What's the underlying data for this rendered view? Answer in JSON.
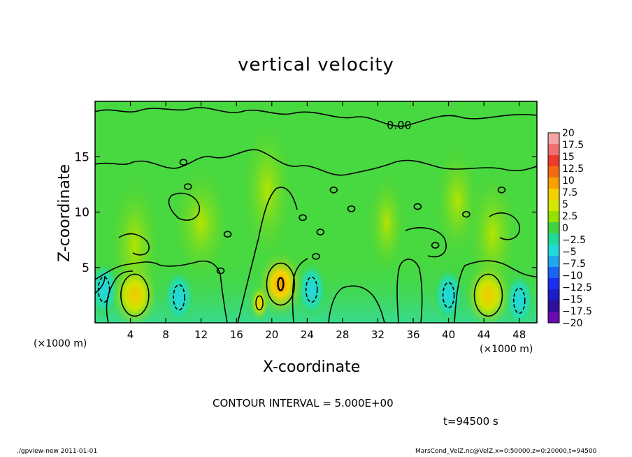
{
  "chart_data": {
    "type": "heatmap",
    "title": "vertical velocity",
    "xlabel": "X-coordinate",
    "ylabel": "Z-coordinate",
    "x_units": "(×1000 m)",
    "y_units": "(×1000 m)",
    "xlim": [
      0,
      50
    ],
    "ylim": [
      0,
      20
    ],
    "x_ticks": [
      "4",
      "8",
      "12",
      "16",
      "20",
      "24",
      "28",
      "32",
      "36",
      "40",
      "44",
      "48"
    ],
    "y_ticks": [
      "5",
      "10",
      "15"
    ],
    "colorbar": {
      "labels": [
        "20",
        "17.5",
        "15",
        "12.5",
        "10",
        "7.5",
        "5",
        "2.5",
        "0",
        "-2.5",
        "-5",
        "-7.5",
        "-10",
        "-12.5",
        "-15",
        "-17.5",
        "-20"
      ],
      "colors": [
        "#f4a6a6",
        "#f07070",
        "#ee3a2a",
        "#f36a10",
        "#f7a000",
        "#f5d000",
        "#d6e600",
        "#96e000",
        "#3fd43f",
        "#21d99a",
        "#21dadc",
        "#1fa8f0",
        "#1a63f5",
        "#1c2cf0",
        "#1d1ac8",
        "#2d0f9c",
        "#6a0bb0"
      ]
    },
    "updrafts": [
      {
        "x": 4.5,
        "z": 2.5,
        "w": 5
      },
      {
        "x": 21.0,
        "z": 3.5,
        "w": 10
      },
      {
        "x": 44.5,
        "z": 2.5,
        "w": 5
      },
      {
        "x": 18.6,
        "z": 1.8,
        "w": 5
      }
    ],
    "downdrafts": [
      {
        "x": 1.0,
        "z": 3.0,
        "w": -5
      },
      {
        "x": 9.5,
        "z": 2.3,
        "w": -5
      },
      {
        "x": 24.5,
        "z": 3.0,
        "w": -5
      },
      {
        "x": 48.0,
        "z": 2.0,
        "w": -5
      },
      {
        "x": 40.0,
        "z": 2.5,
        "w": -5
      }
    ],
    "contour_label": "0.00",
    "contour_label_pos": {
      "x": 33,
      "z": 17.5
    }
  },
  "annotations": {
    "contour_interval": "CONTOUR INTERVAL = 5.000E+00",
    "time": "t=94500 s",
    "footer_left": "./gpview-new   2011-01-01",
    "footer_right": "MarsCond_VelZ.nc@VelZ,x=0:50000,z=0:20000,t=94500"
  }
}
